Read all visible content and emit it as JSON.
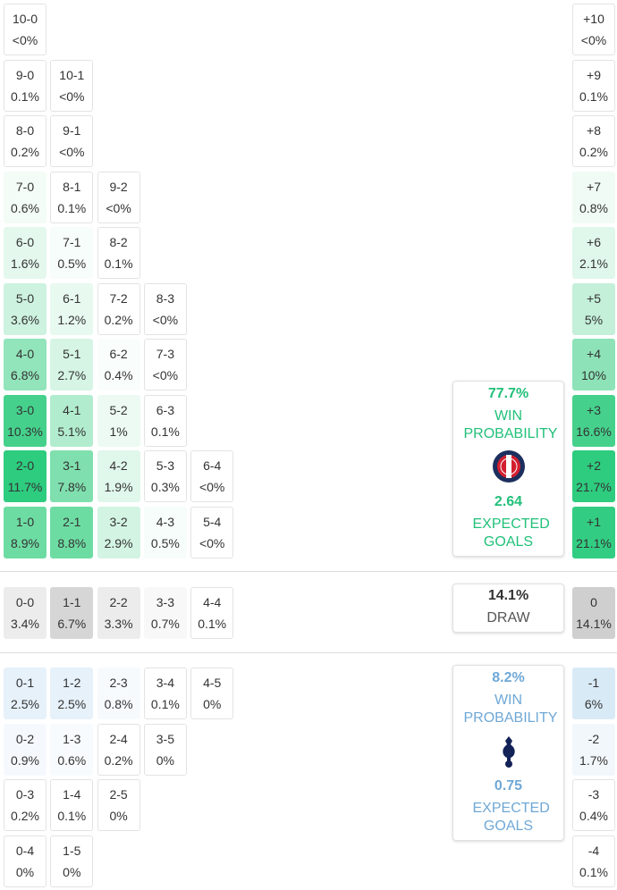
{
  "home": {
    "rows": [
      [
        {
          "score": "10-0",
          "prob": "<0%"
        }
      ],
      [
        {
          "score": "9-0",
          "prob": "0.1%"
        },
        {
          "score": "10-1",
          "prob": "<0%"
        }
      ],
      [
        {
          "score": "8-0",
          "prob": "0.2%"
        },
        {
          "score": "9-1",
          "prob": "<0%"
        }
      ],
      [
        {
          "score": "7-0",
          "prob": "0.6%",
          "bg": "#f3fcf7"
        },
        {
          "score": "8-1",
          "prob": "0.1%"
        },
        {
          "score": "9-2",
          "prob": "<0%"
        }
      ],
      [
        {
          "score": "6-0",
          "prob": "1.6%",
          "bg": "#e4f8ee"
        },
        {
          "score": "7-1",
          "prob": "0.5%",
          "bg": "#f7fdfa"
        },
        {
          "score": "8-2",
          "prob": "0.1%"
        }
      ],
      [
        {
          "score": "5-0",
          "prob": "3.6%",
          "bg": "#cdf2df"
        },
        {
          "score": "6-1",
          "prob": "1.2%",
          "bg": "#e8f9f0"
        },
        {
          "score": "7-2",
          "prob": "0.2%"
        },
        {
          "score": "8-3",
          "prob": "<0%"
        }
      ],
      [
        {
          "score": "4-0",
          "prob": "6.8%",
          "bg": "#92e4ba"
        },
        {
          "score": "5-1",
          "prob": "2.7%",
          "bg": "#d6f5e5"
        },
        {
          "score": "6-2",
          "prob": "0.4%",
          "bg": "#f9fdfb"
        },
        {
          "score": "7-3",
          "prob": "<0%"
        }
      ],
      [
        {
          "score": "3-0",
          "prob": "10.3%",
          "bg": "#45d18c"
        },
        {
          "score": "4-1",
          "prob": "5.1%",
          "bg": "#b2ecce"
        },
        {
          "score": "5-2",
          "prob": "1%",
          "bg": "#ecfaf3"
        },
        {
          "score": "6-3",
          "prob": "0.1%"
        }
      ],
      [
        {
          "score": "2-0",
          "prob": "11.7%",
          "bg": "#2ecc7f"
        },
        {
          "score": "3-1",
          "prob": "7.8%",
          "bg": "#7fdfae"
        },
        {
          "score": "4-2",
          "prob": "1.9%",
          "bg": "#e0f7eb"
        },
        {
          "score": "5-3",
          "prob": "0.3%"
        },
        {
          "score": "6-4",
          "prob": "<0%"
        }
      ],
      [
        {
          "score": "1-0",
          "prob": "8.9%",
          "bg": "#6ddca3"
        },
        {
          "score": "2-1",
          "prob": "8.8%",
          "bg": "#6ddca3"
        },
        {
          "score": "3-2",
          "prob": "2.9%",
          "bg": "#d3f4e3"
        },
        {
          "score": "4-3",
          "prob": "0.5%",
          "bg": "#f7fdfa"
        },
        {
          "score": "5-4",
          "prob": "<0%"
        }
      ]
    ]
  },
  "draw": {
    "row": [
      {
        "score": "0-0",
        "prob": "3.4%",
        "bg": "#ececec"
      },
      {
        "score": "1-1",
        "prob": "6.7%",
        "bg": "#d6d6d6"
      },
      {
        "score": "2-2",
        "prob": "3.3%",
        "bg": "#ececec"
      },
      {
        "score": "3-3",
        "prob": "0.7%",
        "bg": "#f8f8f8"
      },
      {
        "score": "4-4",
        "prob": "0.1%"
      }
    ]
  },
  "away": {
    "rows": [
      [
        {
          "score": "0-1",
          "prob": "2.5%",
          "bg": "#e6f1fa"
        },
        {
          "score": "1-2",
          "prob": "2.5%",
          "bg": "#e6f1fa"
        },
        {
          "score": "2-3",
          "prob": "0.8%",
          "bg": "#f7fafd"
        },
        {
          "score": "3-4",
          "prob": "0.1%"
        },
        {
          "score": "4-5",
          "prob": "0%"
        }
      ],
      [
        {
          "score": "0-2",
          "prob": "0.9%",
          "bg": "#f5f9fd"
        },
        {
          "score": "1-3",
          "prob": "0.6%",
          "bg": "#f8fbfd"
        },
        {
          "score": "2-4",
          "prob": "0.2%"
        },
        {
          "score": "3-5",
          "prob": "0%"
        }
      ],
      [
        {
          "score": "0-3",
          "prob": "0.2%"
        },
        {
          "score": "1-4",
          "prob": "0.1%"
        },
        {
          "score": "2-5",
          "prob": "0%"
        }
      ],
      [
        {
          "score": "0-4",
          "prob": "0%"
        },
        {
          "score": "1-5",
          "prob": "0%"
        }
      ]
    ]
  },
  "margins": {
    "home": [
      {
        "score": "+10",
        "prob": "<0%"
      },
      {
        "score": "+9",
        "prob": "0.1%"
      },
      {
        "score": "+8",
        "prob": "0.2%"
      },
      {
        "score": "+7",
        "prob": "0.8%",
        "bg": "#f0fbf5"
      },
      {
        "score": "+6",
        "prob": "2.1%",
        "bg": "#e0f7eb"
      },
      {
        "score": "+5",
        "prob": "5%",
        "bg": "#c4efd9"
      },
      {
        "score": "+4",
        "prob": "10%",
        "bg": "#8de3b7"
      },
      {
        "score": "+3",
        "prob": "16.6%",
        "bg": "#45d18c"
      },
      {
        "score": "+2",
        "prob": "21.7%",
        "bg": "#2ecc7f"
      },
      {
        "score": "+1",
        "prob": "21.1%",
        "bg": "#32cd82"
      }
    ],
    "draw": [
      {
        "score": "0",
        "prob": "14.1%",
        "bg": "#cfcfcf"
      }
    ],
    "away": [
      {
        "score": "-1",
        "prob": "6%",
        "bg": "#d9eaf7"
      },
      {
        "score": "-2",
        "prob": "1.7%",
        "bg": "#f2f7fc"
      },
      {
        "score": "-3",
        "prob": "0.4%"
      },
      {
        "score": "-4",
        "prob": "0.1%"
      }
    ]
  },
  "panels": {
    "home": {
      "probability": "77.7%",
      "label": "WIN PROBABILITY",
      "xg": "2.64",
      "xg_label": "EXPECTED GOALS",
      "color": "#22c07a"
    },
    "draw": {
      "probability": "14.1%",
      "label": "DRAW"
    },
    "away": {
      "probability": "8.2%",
      "label": "WIN PROBABILITY",
      "xg": "0.75",
      "xg_label": "EXPECTED GOALS",
      "color": "#6fa8d6"
    }
  }
}
